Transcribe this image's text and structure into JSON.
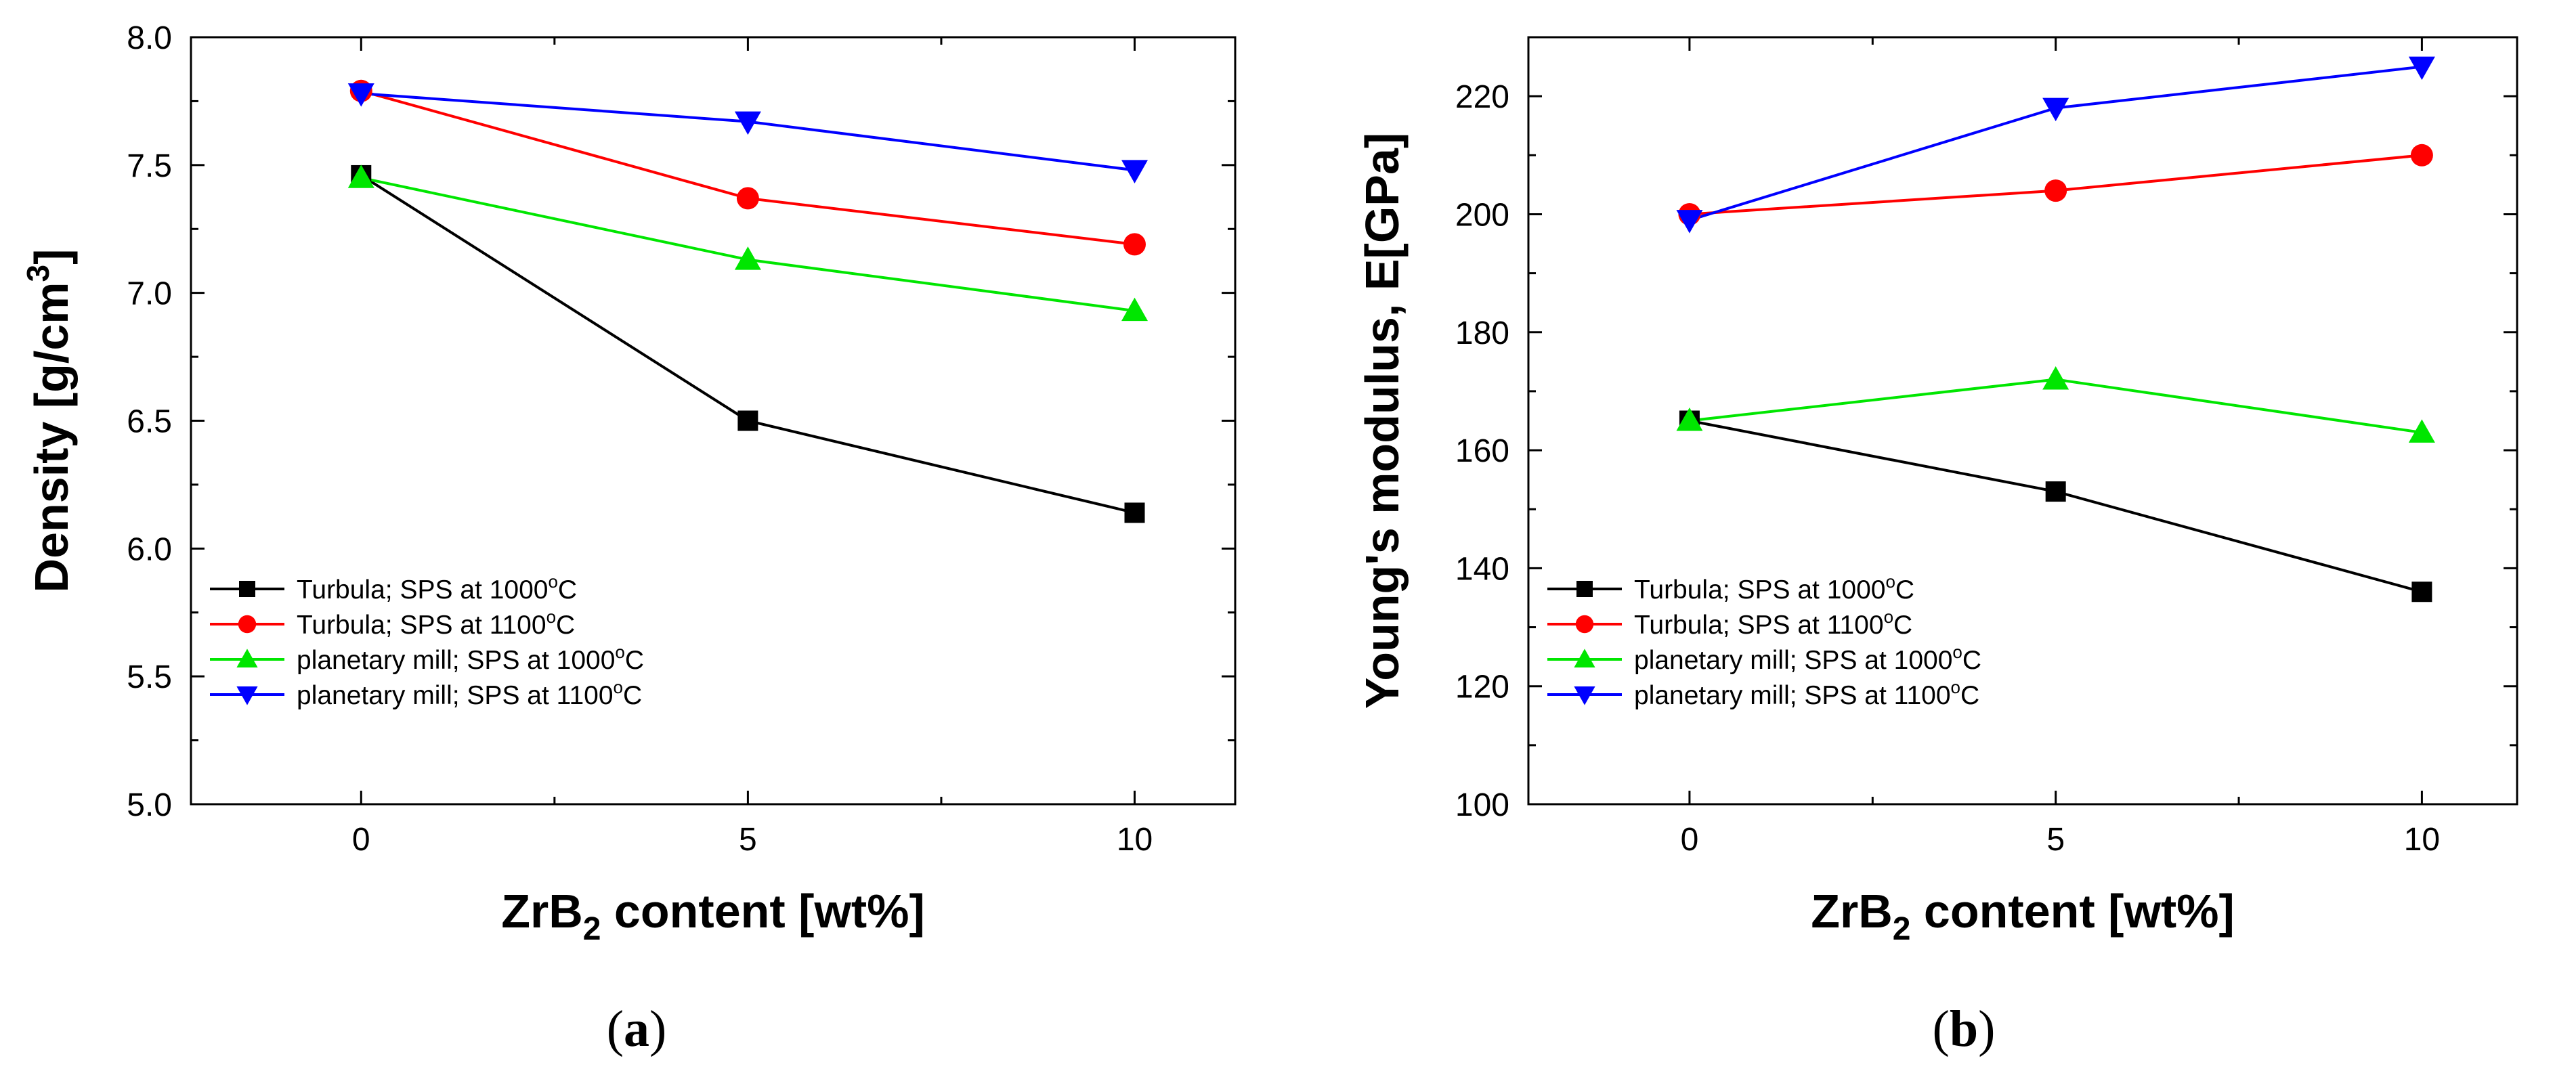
{
  "chart_data": [
    {
      "type": "line",
      "caption": "(a)",
      "caption_letter": "a",
      "xlabel_main": "ZrB",
      "xlabel_sub": "2",
      "xlabel_rest": " content [wt%]",
      "ylabel_main": "Density [g/cm",
      "ylabel_sup": "3",
      "ylabel_rest": "]",
      "xlim": [
        -2.2,
        11.3
      ],
      "ylim": [
        5.0,
        8.0
      ],
      "xticks": [
        0,
        5,
        10
      ],
      "xticks_minor": [
        2.5,
        7.5
      ],
      "yticks": [
        5.0,
        5.5,
        6.0,
        6.5,
        7.0,
        7.5,
        8.0
      ],
      "ytick_labels": [
        "5.0",
        "5.5",
        "6.0",
        "6.5",
        "7.0",
        "7.5",
        "8.0"
      ],
      "grid": false,
      "legend_position": "bottom-left",
      "x": [
        0,
        5,
        10
      ],
      "series": [
        {
          "name": "Turbula; SPS at 1000°C",
          "name_main": "Turbula; SPS at 1000",
          "name_sup": "o",
          "name_rest": "C",
          "color": "#000000",
          "marker": "square",
          "values": [
            7.46,
            6.5,
            6.14
          ]
        },
        {
          "name": "Turbula; SPS at 1100°C",
          "name_main": "Turbula; SPS at 1100",
          "name_sup": "o",
          "name_rest": "C",
          "color": "#ff0000",
          "marker": "circle",
          "values": [
            7.79,
            7.37,
            7.19
          ]
        },
        {
          "name": "planetary mill; SPS at 1000°C",
          "name_main": "planetary mill; SPS at 1000",
          "name_sup": "o",
          "name_rest": "C",
          "color": "#00e600",
          "marker": "triangle-up",
          "values": [
            7.45,
            7.13,
            6.93
          ]
        },
        {
          "name": "planetary mill; SPS at 1100°C",
          "name_main": "planetary mill; SPS at 1100",
          "name_sup": "o",
          "name_rest": "C",
          "color": "#0000ff",
          "marker": "triangle-down",
          "values": [
            7.78,
            7.67,
            7.48
          ]
        }
      ]
    },
    {
      "type": "line",
      "caption": "(b)",
      "caption_letter": "b",
      "xlabel_main": "ZrB",
      "xlabel_sub": "2",
      "xlabel_rest": " content [wt%]",
      "ylabel_main": "Young's modulus, E[GPa]",
      "ylabel_sup": "",
      "ylabel_rest": "",
      "xlim": [
        -2.2,
        11.3
      ],
      "ylim": [
        100,
        230
      ],
      "xticks": [
        0,
        5,
        10
      ],
      "xticks_minor": [
        2.5,
        7.5
      ],
      "yticks": [
        100,
        120,
        140,
        160,
        180,
        200,
        220
      ],
      "ytick_labels": [
        "100",
        "120",
        "140",
        "160",
        "180",
        "200",
        "220"
      ],
      "grid": false,
      "legend_position": "bottom-left",
      "x": [
        0,
        5,
        10
      ],
      "series": [
        {
          "name": "Turbula; SPS at 1000°C",
          "name_main": "Turbula; SPS at 1000",
          "name_sup": "o",
          "name_rest": "C",
          "color": "#000000",
          "marker": "square",
          "values": [
            165,
            153,
            136
          ]
        },
        {
          "name": "Turbula; SPS at 1100°C",
          "name_main": "Turbula; SPS at 1100",
          "name_sup": "o",
          "name_rest": "C",
          "color": "#ff0000",
          "marker": "circle",
          "values": [
            200,
            204,
            210
          ]
        },
        {
          "name": "planetary mill; SPS at 1000°C",
          "name_main": "planetary mill; SPS at 1000",
          "name_sup": "o",
          "name_rest": "C",
          "color": "#00e600",
          "marker": "triangle-up",
          "values": [
            165,
            172,
            163
          ]
        },
        {
          "name": "planetary mill; SPS at 1100°C",
          "name_main": "planetary mill; SPS at 1100",
          "name_sup": "o",
          "name_rest": "C",
          "color": "#0000ff",
          "marker": "triangle-down",
          "values": [
            199,
            218,
            225
          ]
        }
      ]
    }
  ]
}
